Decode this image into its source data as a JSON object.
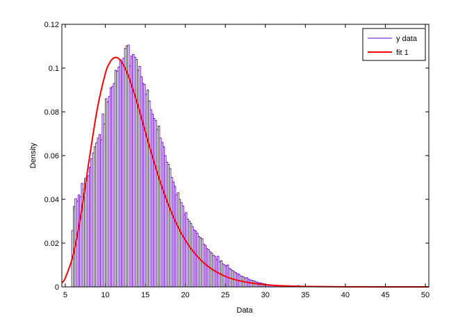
{
  "chart_data": {
    "type": "bar",
    "title": "",
    "xlabel": "Data",
    "ylabel": "Density",
    "xlim": [
      4.57,
      50.43
    ],
    "ylim": [
      0,
      0.12
    ],
    "xticks": [
      5,
      10,
      15,
      20,
      25,
      30,
      35,
      40,
      45,
      50
    ],
    "yticks": [
      0,
      0.02,
      0.04,
      0.06,
      0.08,
      0.1,
      0.12
    ],
    "ytick_labels": [
      "0",
      "0.02",
      "0.04",
      "0.06",
      "0.08",
      "0.1",
      "0.12"
    ],
    "grid": false,
    "legend_position": "top-right",
    "colors": {
      "histogram": "#5c00c8",
      "fit": "#ff0000"
    },
    "histogram": {
      "name": "y data",
      "bin_start": 5.8,
      "bin_width": 0.2,
      "values": [
        0.0257,
        0.0368,
        0.0403,
        0.0392,
        0.042,
        0.0411,
        0.0473,
        0.0447,
        0.0496,
        0.0487,
        0.0508,
        0.0547,
        0.0586,
        0.0612,
        0.064,
        0.0658,
        0.068,
        0.0696,
        0.0672,
        0.079,
        0.0745,
        0.086,
        0.0845,
        0.087,
        0.091,
        0.0915,
        0.093,
        0.099,
        0.0985,
        0.1005,
        0.1038,
        0.102,
        0.1045,
        0.109,
        0.1102,
        0.1105,
        0.101,
        0.1055,
        0.1062,
        0.105,
        0.104,
        0.099,
        0.1008,
        0.096,
        0.093,
        0.0925,
        0.088,
        0.09,
        0.085,
        0.081,
        0.079,
        0.077,
        0.076,
        0.072,
        0.0735,
        0.068,
        0.066,
        0.064,
        0.06,
        0.057,
        0.056,
        0.054,
        0.05,
        0.048,
        0.046,
        0.042,
        0.043,
        0.04,
        0.0385,
        0.037,
        0.033,
        0.034,
        0.031,
        0.03,
        0.029,
        0.0275,
        0.026,
        0.0255,
        0.0245,
        0.023,
        0.0225,
        0.022,
        0.0195,
        0.019,
        0.0175,
        0.017,
        0.016,
        0.0155,
        0.0145,
        0.014,
        0.0125,
        0.014,
        0.0115,
        0.012,
        0.0105,
        0.01,
        0.0095,
        0.01,
        0.0085,
        0.008,
        0.0075,
        0.007,
        0.0065,
        0.006,
        0.0058,
        0.005,
        0.0048,
        0.0045,
        0.004,
        0.0042,
        0.0035,
        0.0032,
        0.003,
        0.0028,
        0.0026,
        0.0022,
        0.002,
        0.0018,
        0.0017,
        0.0015,
        0.0013,
        0.0012,
        0.001,
        0.001,
        0.0008,
        0.0008,
        0.0007,
        0.0006,
        0.0005,
        0.0005,
        0.0004,
        0.0004,
        0.0003,
        0.0003,
        0.0002,
        0.0002,
        0.0002,
        0.0001,
        0.0001,
        0.0001,
        0.0001,
        0.0006,
        0.0001
      ]
    },
    "fit": {
      "name": "fit 1",
      "x": [
        4.57,
        5,
        6,
        7,
        8,
        9,
        10,
        10.5,
        11,
        11.5,
        12,
        12.5,
        13,
        14,
        15,
        16,
        17,
        18,
        19,
        20,
        21,
        22,
        23,
        24,
        25,
        26,
        27,
        28,
        30,
        32,
        35,
        40,
        45,
        50.43
      ],
      "y": [
        0.0019,
        0.0041,
        0.0148,
        0.0342,
        0.0585,
        0.0814,
        0.0975,
        0.1021,
        0.1045,
        0.1047,
        0.103,
        0.0997,
        0.0952,
        0.0838,
        0.0708,
        0.0581,
        0.0464,
        0.0364,
        0.028,
        0.0213,
        0.0161,
        0.012,
        0.0089,
        0.0066,
        0.0048,
        0.0035,
        0.0026,
        0.0019,
        0.001,
        0.0005,
        0.0002,
        4e-05,
        1e-05,
        0
      ]
    },
    "legend": [
      "y data",
      "fit 1"
    ]
  }
}
